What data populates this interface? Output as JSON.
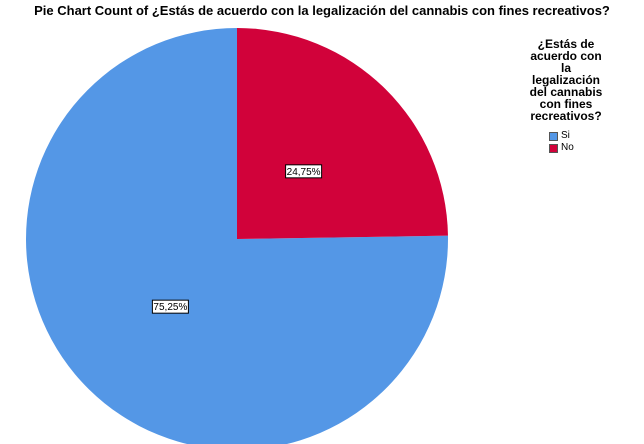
{
  "chart_data": {
    "type": "pie",
    "title": "Pie Chart Count of ¿Estás de acuerdo con la legalización del cannabis con fines recreativos?",
    "legend_title": "¿Estás de acuerdo con la legalización del cannabis con fines recreativos?",
    "legend_title_lines": [
      "¿Estás de",
      "acuerdo con",
      "la",
      "legalización",
      "del cannabis",
      "con fines",
      "recreativos?"
    ],
    "legend_position": "right",
    "slices": [
      {
        "name": "Si",
        "value": 75.25,
        "label": "75,25%",
        "color": "#5497e6"
      },
      {
        "name": "No",
        "value": 24.75,
        "label": "24,75%",
        "color": "#d1023a"
      }
    ]
  }
}
